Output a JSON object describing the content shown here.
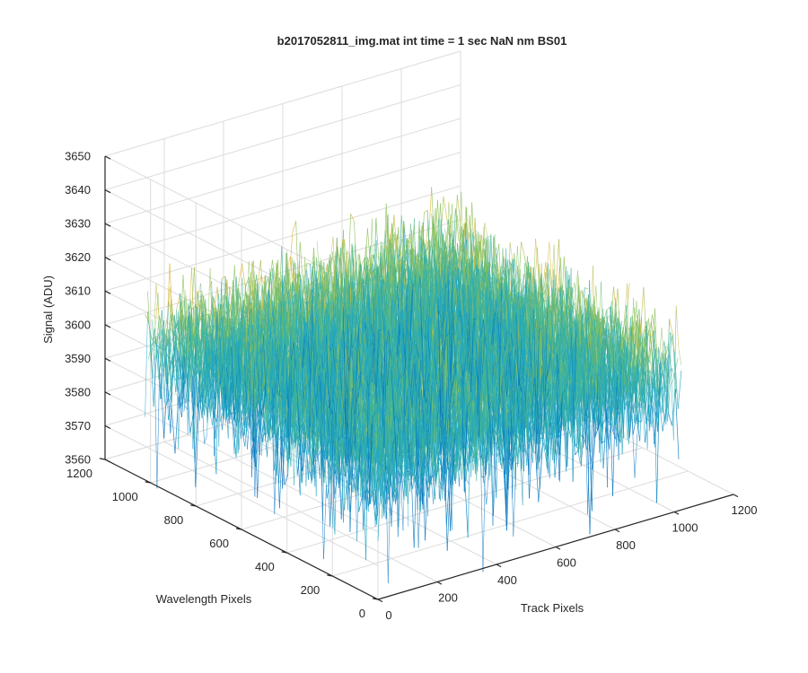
{
  "chart_data": {
    "type": "surface",
    "title": "b2017052811_img.mat int time = 1 sec  NaN nm BS01",
    "xlabel": "Track Pixels",
    "ylabel": "Wavelength Pixels",
    "zlabel": "Signal (ADU)",
    "xlim": [
      0,
      1200
    ],
    "ylim": [
      0,
      1200
    ],
    "zlim": [
      3560,
      3650
    ],
    "x_ticks": [
      "0",
      "200",
      "400",
      "600",
      "800",
      "1000",
      "1200"
    ],
    "y_ticks": [
      "0",
      "200",
      "400",
      "600",
      "800",
      "1000",
      "1200"
    ],
    "z_ticks": [
      "3560",
      "3570",
      "3580",
      "3590",
      "3600",
      "3610",
      "3620",
      "3630",
      "3640",
      "3650"
    ],
    "data_extent": {
      "x": [
        0,
        1024
      ],
      "y": [
        0,
        1024
      ]
    },
    "surface_mean": 3600,
    "surface_range_typical": [
      3580,
      3620
    ],
    "colormap": [
      "#0072bd",
      "#1ba3c6",
      "#3cb39e",
      "#8fc15a",
      "#d9b73a"
    ],
    "grid": true
  }
}
